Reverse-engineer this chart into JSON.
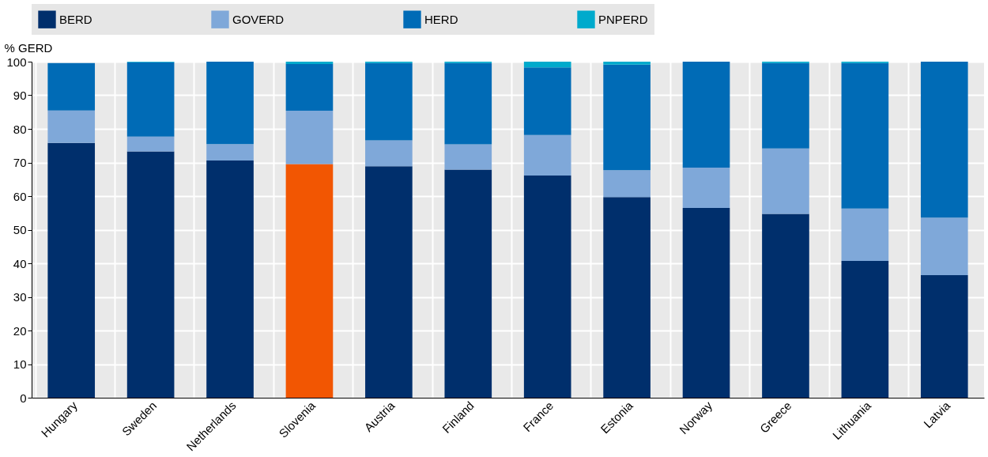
{
  "chart_data": {
    "type": "bar",
    "stacked": true,
    "ylabel": "% GERD",
    "categories": [
      "Hungary",
      "Sweden",
      "Netherlands",
      "Slovenia",
      "Austria",
      "Finland",
      "France",
      "Estonia",
      "Norway",
      "Greece",
      "Lithuania",
      "Latvia"
    ],
    "series": [
      {
        "name": "BERD",
        "color": "#002f6c",
        "colors": [
          "#002f6c",
          "#002f6c",
          "#002f6c",
          "#f25602",
          "#002f6c",
          "#002f6c",
          "#002f6c",
          "#002f6c",
          "#002f6c",
          "#002f6c",
          "#002f6c",
          "#002f6c"
        ],
        "values": [
          75.8,
          73.3,
          70.6,
          69.5,
          68.9,
          67.9,
          66.1,
          59.7,
          56.5,
          54.7,
          40.7,
          36.5
        ]
      },
      {
        "name": "GOVERD",
        "color": "#7fa8d9",
        "values": [
          9.7,
          4.4,
          4.9,
          15.9,
          7.7,
          7.5,
          12.1,
          8.0,
          12.0,
          19.5,
          15.6,
          17.1
        ]
      },
      {
        "name": "HERD",
        "color": "#006bb6",
        "values": [
          14.1,
          22.1,
          24.5,
          13.9,
          23.0,
          24.2,
          20.1,
          31.4,
          31.5,
          25.4,
          43.3,
          46.4
        ]
      },
      {
        "name": "PNPERD",
        "color": "#00aacc",
        "values": [
          0,
          0.2,
          0,
          0.7,
          0.4,
          0.4,
          1.7,
          0.9,
          0,
          0.4,
          0.4,
          0
        ]
      }
    ],
    "ylim": [
      0,
      100
    ],
    "yticks": [
      0,
      10,
      20,
      30,
      40,
      50,
      60,
      70,
      80,
      90,
      100
    ],
    "grid": true,
    "legend": "top"
  }
}
